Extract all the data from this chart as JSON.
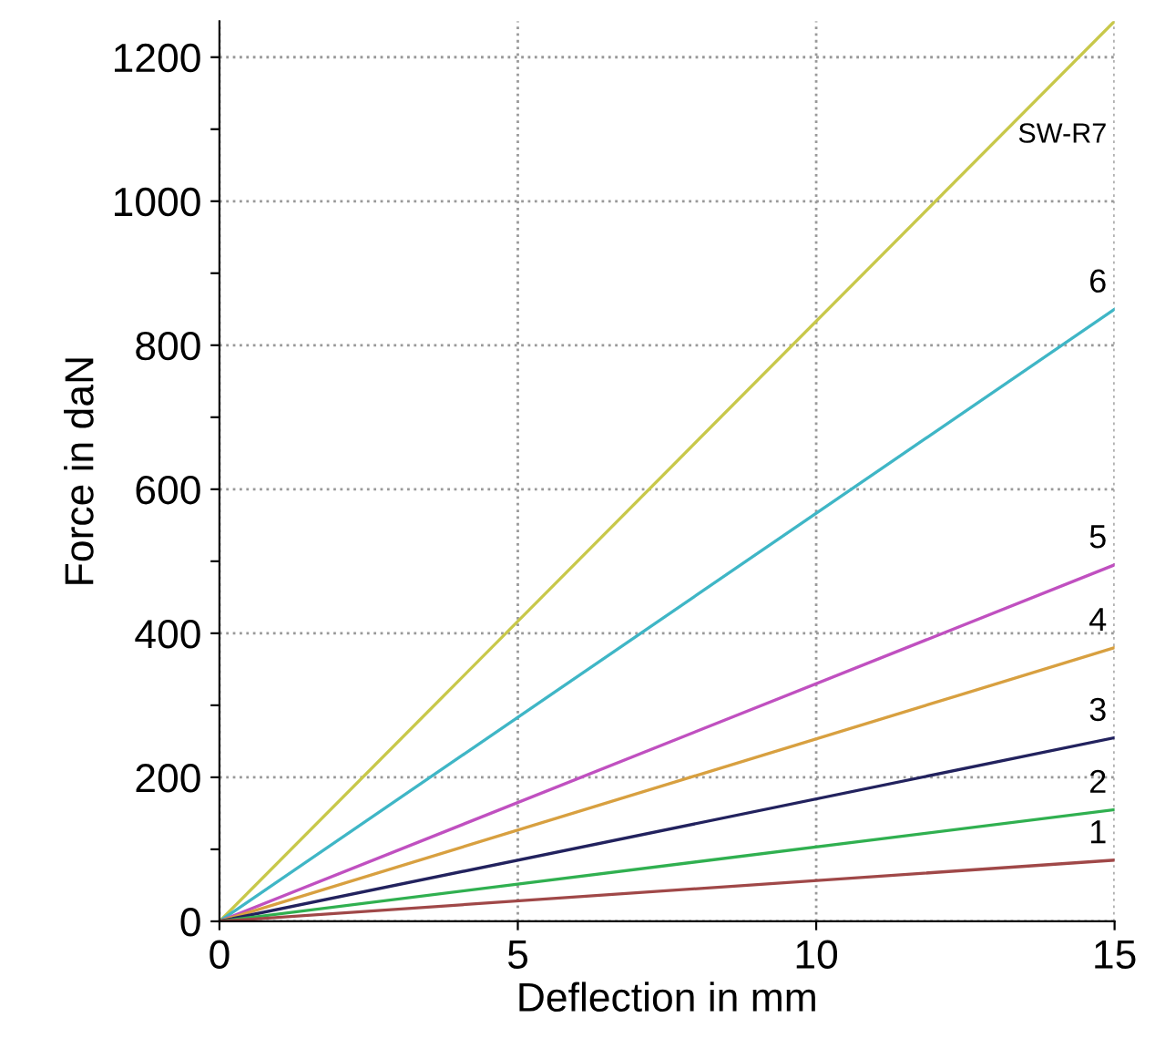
{
  "chart_data": {
    "type": "line",
    "xlabel": "Deflection in mm",
    "ylabel": "Force in daN",
    "x": [
      0,
      15
    ],
    "series": [
      {
        "name": "SW-R7",
        "color": "#c8c84a",
        "values": [
          0,
          1250
        ]
      },
      {
        "name": "6",
        "color": "#3fb6c6",
        "values": [
          0,
          850
        ]
      },
      {
        "name": "5",
        "color": "#c050c0",
        "values": [
          0,
          495
        ]
      },
      {
        "name": "4",
        "color": "#d8a040",
        "values": [
          0,
          380
        ]
      },
      {
        "name": "3",
        "color": "#22225e",
        "values": [
          0,
          255
        ]
      },
      {
        "name": "2",
        "color": "#30b050",
        "values": [
          0,
          155
        ]
      },
      {
        "name": "1",
        "color": "#a04848",
        "values": [
          0,
          85
        ]
      }
    ],
    "xlim": [
      0,
      15
    ],
    "xticks": [
      0,
      5,
      10,
      15
    ],
    "ylim": [
      0,
      1250
    ],
    "yticks": [
      0,
      {
        "value": 100,
        "label": null
      },
      200,
      {
        "value": 300,
        "label": null
      },
      400,
      {
        "value": 500,
        "label": null
      },
      600,
      {
        "value": 700,
        "label": null
      },
      800,
      {
        "value": 900,
        "label": null
      },
      1000,
      {
        "value": 1100,
        "label": null
      },
      1200
    ],
    "grid": true,
    "line_style": "solid",
    "marker": "none"
  }
}
